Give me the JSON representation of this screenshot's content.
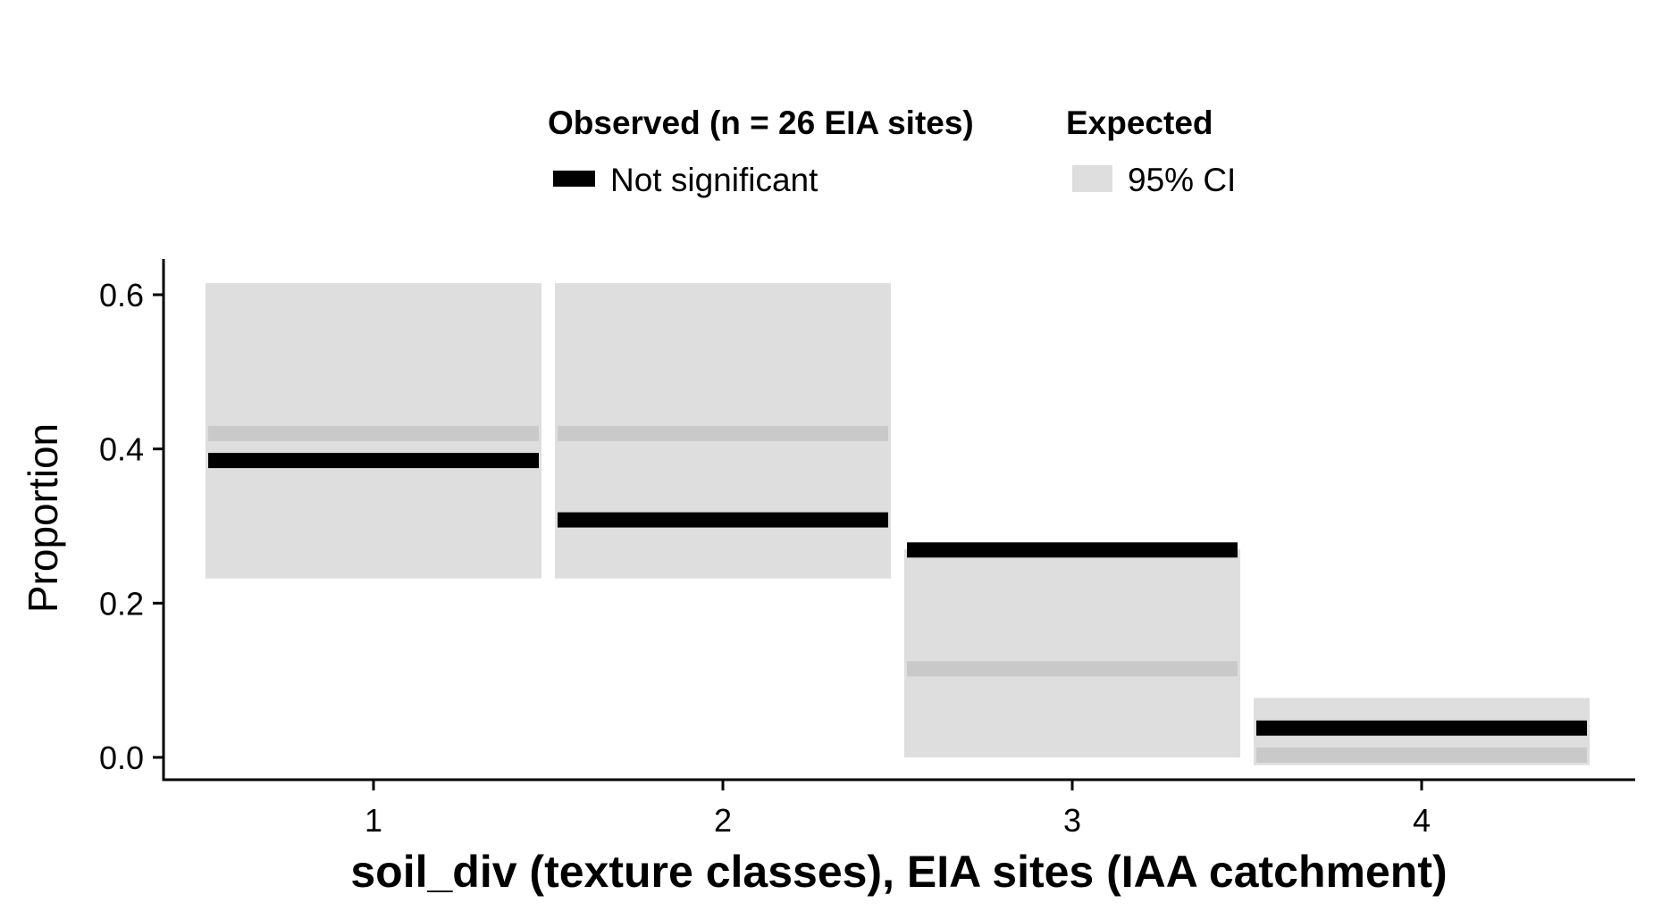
{
  "chart_data": {
    "type": "bar",
    "categories": [
      "1",
      "2",
      "3",
      "4"
    ],
    "xlabel": "soil_div (texture classes), EIA sites (IAA catchment)",
    "ylabel": "Proportion",
    "ylim": [
      -0.03,
      0.65
    ],
    "yticks": [
      0.0,
      0.2,
      0.4,
      0.6
    ],
    "ytick_labels": [
      "0.0",
      "0.2",
      "0.4",
      "0.6"
    ],
    "grid": false,
    "legend_position": "top",
    "legend": {
      "observed_title": "Observed (n = 26 EIA sites)",
      "observed_item": "Not significant",
      "expected_title": "Expected",
      "expected_item": "95% CI"
    },
    "series": [
      {
        "name": "Not significant",
        "role": "observed",
        "values": [
          0.385,
          0.308,
          0.269,
          0.038
        ]
      },
      {
        "name": "95% CI",
        "role": "expected",
        "expected": [
          0.42,
          0.42,
          0.115,
          0.003
        ],
        "ci_lower": [
          0.232,
          0.232,
          0.0,
          -0.01
        ],
        "ci_upper": [
          0.615,
          0.615,
          0.27,
          0.077
        ]
      }
    ],
    "colors": {
      "observed": "#000000",
      "ci_band": "#dedede",
      "expected_line": "#c9c9c9",
      "axis": "#000000"
    }
  }
}
